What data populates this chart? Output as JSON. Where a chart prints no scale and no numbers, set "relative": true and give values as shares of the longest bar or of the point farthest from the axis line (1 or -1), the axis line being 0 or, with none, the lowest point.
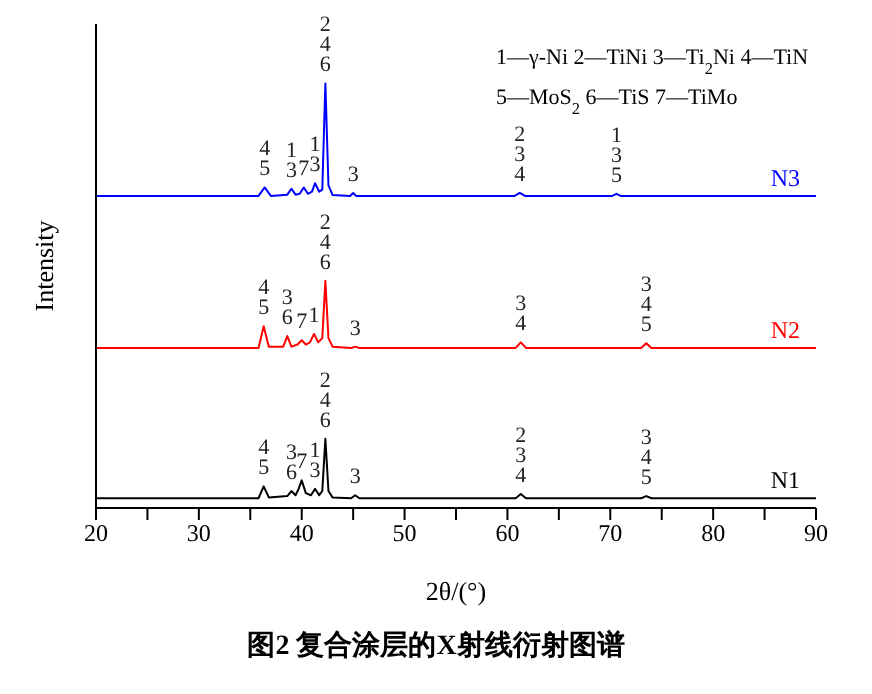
{
  "chart_data": {
    "type": "line",
    "title": "图2 复合涂层的X射线衍射图谱",
    "xlabel": "2θ/(°)",
    "ylabel": "Intensity",
    "relative": true,
    "marker": "none",
    "line_style": "solid",
    "grid": false,
    "legend": false,
    "xlim": [
      20,
      90
    ],
    "xticks": [
      20,
      {
        "value": 25,
        "label": null
      },
      30,
      {
        "value": 35,
        "label": null
      },
      40,
      {
        "value": 45,
        "label": null
      },
      50,
      {
        "value": 55,
        "label": null
      },
      60,
      {
        "value": 65,
        "label": null
      },
      70,
      {
        "value": 75,
        "label": null
      },
      80,
      {
        "value": 85,
        "label": null
      },
      90
    ],
    "series": [
      {
        "name": "N3",
        "color": "#0000ff",
        "x": [
          20,
          35.8,
          36.4,
          37,
          38.6,
          39,
          39.4,
          39.8,
          40.2,
          40.6,
          41,
          41.3,
          41.7,
          42.0,
          42.3,
          42.6,
          43,
          44.7,
          45,
          45.3,
          60.7,
          61.2,
          61.7,
          70.2,
          70.6,
          71,
          90
        ],
        "values": [
          0.735,
          0.735,
          0.755,
          0.735,
          0.738,
          0.752,
          0.738,
          0.74,
          0.755,
          0.74,
          0.745,
          0.765,
          0.745,
          0.75,
          1.0,
          0.76,
          0.737,
          0.735,
          0.742,
          0.735,
          0.735,
          0.742,
          0.735,
          0.735,
          0.74,
          0.735,
          0.735
        ]
      },
      {
        "name": "N2",
        "color": "#ff0000",
        "x": [
          20,
          35.8,
          36.3,
          36.8,
          38.2,
          38.6,
          39,
          39.6,
          40,
          40.4,
          40.8,
          41.2,
          41.6,
          42.0,
          42.3,
          42.6,
          43,
          44.8,
          45.2,
          45.6,
          60.8,
          61.3,
          61.8,
          73,
          73.5,
          74,
          90
        ],
        "values": [
          0.377,
          0.377,
          0.428,
          0.38,
          0.38,
          0.405,
          0.38,
          0.385,
          0.395,
          0.385,
          0.39,
          0.41,
          0.39,
          0.4,
          0.535,
          0.4,
          0.38,
          0.377,
          0.38,
          0.377,
          0.377,
          0.39,
          0.377,
          0.377,
          0.388,
          0.377,
          0.377
        ]
      },
      {
        "name": "N1",
        "color": "#000000",
        "x": [
          20,
          35.8,
          36.3,
          36.8,
          38.6,
          39,
          39.4,
          39.7,
          40,
          40.4,
          40.9,
          41.3,
          41.7,
          42.0,
          42.3,
          42.6,
          43,
          44.8,
          45.2,
          45.6,
          60.8,
          61.3,
          61.8,
          73,
          73.5,
          74,
          90
        ],
        "values": [
          0.023,
          0.023,
          0.051,
          0.025,
          0.028,
          0.04,
          0.03,
          0.045,
          0.065,
          0.035,
          0.03,
          0.045,
          0.03,
          0.04,
          0.163,
          0.04,
          0.025,
          0.023,
          0.03,
          0.023,
          0.023,
          0.033,
          0.023,
          0.023,
          0.028,
          0.023,
          0.023
        ]
      }
    ],
    "annotations": [
      "1—γ-Ni 2—TiNi 3—Ti$_{2}$Ni 4—TiN",
      "5—MoS$_{2}$ 6—TiS 7—TiMo",
      {
        "text": "4\n5",
        "x": 36.4,
        "y": 0.755
      },
      {
        "text": "1\n3",
        "x": 39,
        "y": 0.752
      },
      {
        "text": "7",
        "x": 40.2,
        "y": 0.755
      },
      {
        "text": "1\n3",
        "x": 41.3,
        "y": 0.765
      },
      {
        "text": "2\n4\n6",
        "x": 42.3,
        "y": 1.0
      },
      {
        "text": "3",
        "x": 45,
        "y": 0.742
      },
      {
        "text": "2\n3\n4",
        "x": 61.2,
        "y": 0.742
      },
      {
        "text": "1\n3\n5",
        "x": 70.6,
        "y": 0.74
      },
      {
        "text": "4\n5",
        "x": 36.3,
        "y": 0.428
      },
      {
        "text": "3\n6",
        "x": 38.6,
        "y": 0.405
      },
      {
        "text": "7",
        "x": 40,
        "y": 0.395
      },
      {
        "text": "1",
        "x": 41.2,
        "y": 0.41
      },
      {
        "text": "2\n4\n6",
        "x": 42.3,
        "y": 0.535
      },
      {
        "text": "3",
        "x": 45.2,
        "y": 0.38
      },
      {
        "text": "3\n4",
        "x": 61.3,
        "y": 0.39
      },
      {
        "text": "3\n4\n5",
        "x": 73.5,
        "y": 0.388
      },
      {
        "text": "4\n5",
        "x": 36.3,
        "y": 0.051
      },
      {
        "text": "3\n6",
        "x": 39,
        "y": 0.04
      },
      {
        "text": "7",
        "x": 40,
        "y": 0.065
      },
      {
        "text": "1\n3",
        "x": 41.3,
        "y": 0.045
      },
      {
        "text": "2\n4\n6",
        "x": 42.3,
        "y": 0.163
      },
      {
        "text": "3",
        "x": 45.2,
        "y": 0.03
      },
      {
        "text": "2\n3\n4",
        "x": 61.3,
        "y": 0.033
      },
      {
        "text": "3\n4\n5",
        "x": 73.5,
        "y": 0.028
      }
    ]
  }
}
